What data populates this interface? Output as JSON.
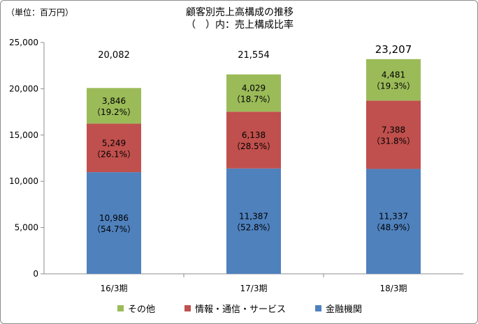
{
  "header": {
    "unit_label": "（単位：百万円）",
    "title_line1": "顧客別売上高構成の推移",
    "title_line2": "（　）内：売上構成比率"
  },
  "chart_data": {
    "type": "bar",
    "stacked": true,
    "categories": [
      "16/3期",
      "17/3期",
      "18/3期"
    ],
    "ylim": [
      0,
      25000
    ],
    "yticks": [
      0,
      5000,
      10000,
      15000,
      20000,
      25000
    ],
    "ytick_labels": [
      "0",
      "5,000",
      "10,000",
      "15,000",
      "20,000",
      "25,000"
    ],
    "grid": false,
    "legend_position": "bottom",
    "series": [
      {
        "name": "金融機関",
        "color": "#4f81bd",
        "values": [
          10986,
          11387,
          11337
        ],
        "value_labels": [
          "10,986",
          "11,387",
          "11,337"
        ],
        "pct_labels": [
          "（54.7%）",
          "（52.8%）",
          "（48.9%）"
        ]
      },
      {
        "name": "情報・通信・サービス",
        "color": "#c0504d",
        "values": [
          5249,
          6138,
          7388
        ],
        "value_labels": [
          "5,249",
          "6,138",
          "7,388"
        ],
        "pct_labels": [
          "（26.1%）",
          "（28.5%）",
          "（31.8%）"
        ]
      },
      {
        "name": "その他",
        "color": "#9bbb59",
        "values": [
          3846,
          4029,
          4481
        ],
        "value_labels": [
          "3,846",
          "4,029",
          "4,481"
        ],
        "pct_labels": [
          "（19.2%）",
          "（18.7%）",
          "（19.3%）"
        ]
      }
    ],
    "totals": [
      20082,
      21554,
      23207
    ],
    "total_labels": [
      "20,082",
      "21,554",
      "23,207"
    ]
  },
  "legend": [
    {
      "label": "その他",
      "color": "#9bbb59"
    },
    {
      "label": "情報・通信・サービス",
      "color": "#c0504d"
    },
    {
      "label": "金融機関",
      "color": "#4f81bd"
    }
  ]
}
